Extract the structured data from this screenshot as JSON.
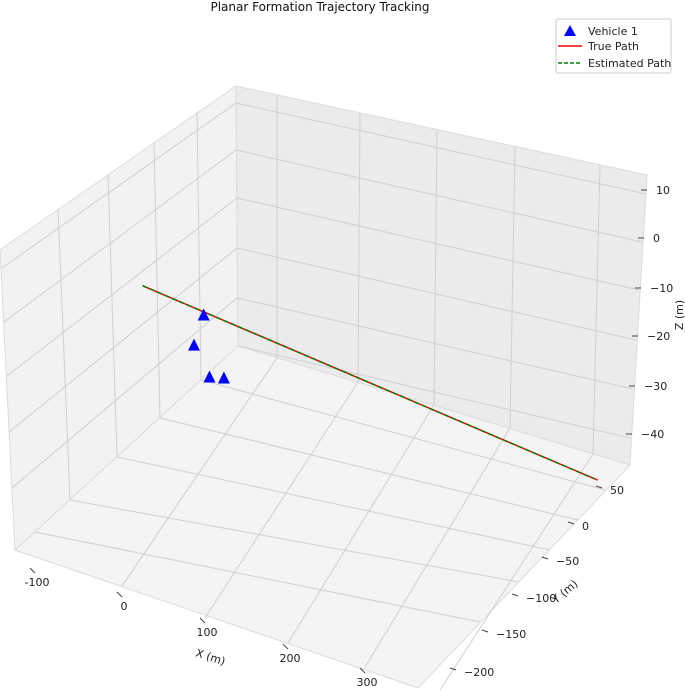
{
  "chart_data": {
    "type": "scatter",
    "projection": "3d",
    "title": "Planar Formation Trajectory Tracking",
    "xlabel": "X (m)",
    "ylabel": "Y (m)",
    "zlabel": "Z (m)",
    "x_ticks": [
      -100,
      0,
      100,
      200,
      300
    ],
    "y_ticks": [
      50,
      0,
      -50,
      -100,
      -150,
      -200
    ],
    "z_ticks": [
      10,
      0,
      -10,
      -20,
      -30,
      -40
    ],
    "grid": true,
    "legend_position": "top-right",
    "legend": [
      {
        "label": "Vehicle 1",
        "marker": "triangle",
        "color": "#0000ff"
      },
      {
        "label": "True Path",
        "style": "solid",
        "color": "#ff0000"
      },
      {
        "label": "Estimated Path",
        "style": "dashed",
        "color": "#008000"
      }
    ],
    "series": [
      {
        "name": "Vehicle 1",
        "kind": "scatter",
        "marker": "triangle",
        "color": "#0000ff",
        "points": [
          {
            "x": -10,
            "y": 10,
            "z": 0
          },
          {
            "x": 15,
            "y": 20,
            "z": 5
          },
          {
            "x": 0,
            "y": 0,
            "z": -5
          },
          {
            "x": 20,
            "y": 0,
            "z": -5
          }
        ]
      },
      {
        "name": "True Path",
        "kind": "line",
        "color": "#ff0000",
        "start": {
          "x": -70,
          "y": 20,
          "z": 10
        },
        "end": {
          "x": 320,
          "y": -190,
          "z": 0
        }
      },
      {
        "name": "Estimated Path",
        "kind": "line",
        "style": "dashed",
        "color": "#008000",
        "start": {
          "x": -70,
          "y": 20,
          "z": 10
        },
        "end": {
          "x": 318,
          "y": -188,
          "z": 0
        }
      }
    ]
  }
}
